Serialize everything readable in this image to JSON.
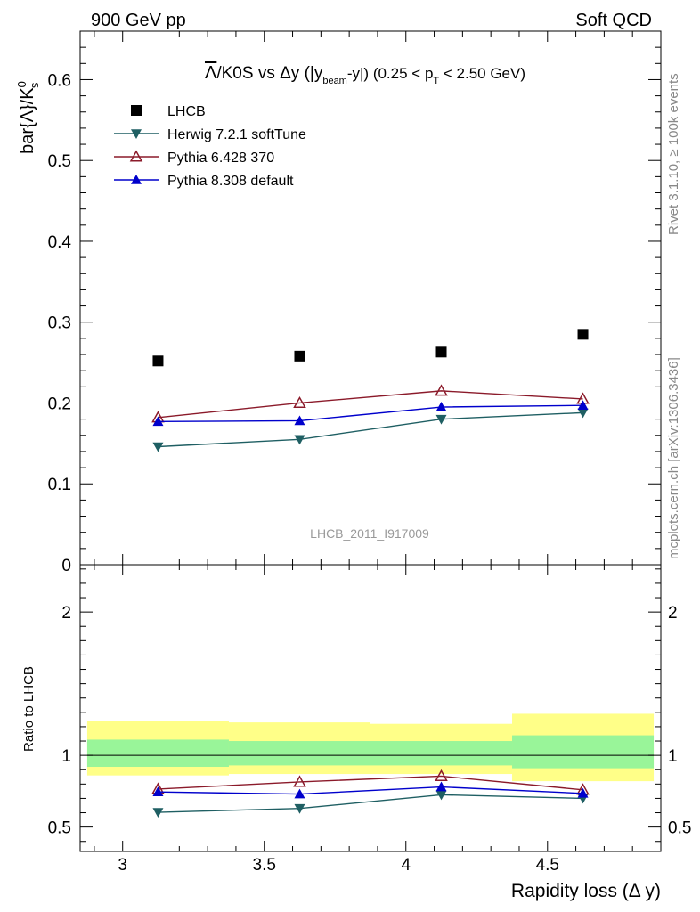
{
  "header": {
    "left": "900 GeV pp",
    "right": "Soft QCD"
  },
  "side_labels": {
    "rivet": "Rivet 3.1.10, ≥ 100k events",
    "mcplots": "mcplots.cern.ch [arXiv:1306.3436]"
  },
  "chart_data": [
    {
      "type": "scatter",
      "title_overline": "Λ",
      "title_main": "/K0S vs Δy (|y",
      "title_sub1": "beam",
      "title_mid": "-y|) (0.25 < p",
      "title_sub2": "T",
      "title_end": " < 2.50 GeV)",
      "ylabel_main": "bar{Λ}/K",
      "ylabel_sup": "0",
      "ylabel_sub": "s",
      "watermark": "LHCB_2011_I917009",
      "ylim": [
        0,
        0.66
      ],
      "yticks": [
        0,
        0.1,
        0.2,
        0.3,
        0.4,
        0.5,
        0.6
      ],
      "ytick_labels": [
        "0",
        "0.1",
        "0.2",
        "0.3",
        "0.4",
        "0.5",
        "0.6"
      ],
      "x": [
        3.125,
        3.625,
        4.125,
        4.625
      ],
      "data": {
        "name": "LHCB",
        "color": "#000000",
        "marker": "square",
        "values": [
          0.252,
          0.258,
          0.263,
          0.285
        ]
      },
      "series": [
        {
          "name": "Herwig 7.2.1 softTune",
          "color": "#1f5f63",
          "marker": "triangle-down",
          "values": [
            0.146,
            0.155,
            0.18,
            0.188
          ]
        },
        {
          "name": "Pythia 6.428 370",
          "color": "#8b1a2a",
          "marker": "triangle-up-open",
          "values": [
            0.182,
            0.2,
            0.215,
            0.205
          ]
        },
        {
          "name": "Pythia 8.308 default",
          "color": "#0000cc",
          "marker": "triangle-up",
          "values": [
            0.177,
            0.178,
            0.195,
            0.197
          ]
        }
      ],
      "legend_position": "top-left"
    },
    {
      "type": "line",
      "ylabel": "Ratio to LHCB",
      "xlabel": "Rapidity loss (Δ y)",
      "xlim": [
        2.85,
        4.9
      ],
      "xticks": [
        3,
        3.5,
        4,
        4.5
      ],
      "xtick_labels": [
        "3",
        "3.5",
        "4",
        "4.5"
      ],
      "ylim": [
        0.33,
        2.33
      ],
      "yticks": [
        0.5,
        1,
        2
      ],
      "ytick_labels": [
        "0.5",
        "1",
        "2"
      ],
      "bands": [
        {
          "x0": 2.875,
          "x1": 3.375,
          "yellow": [
            0.86,
            1.24
          ],
          "green": [
            0.92,
            1.11
          ]
        },
        {
          "x0": 3.375,
          "x1": 3.875,
          "yellow": [
            0.87,
            1.23
          ],
          "green": [
            0.93,
            1.1
          ]
        },
        {
          "x0": 3.875,
          "x1": 4.375,
          "yellow": [
            0.87,
            1.22
          ],
          "green": [
            0.93,
            1.1
          ]
        },
        {
          "x0": 4.375,
          "x1": 4.875,
          "yellow": [
            0.82,
            1.29
          ],
          "green": [
            0.91,
            1.14
          ]
        }
      ],
      "series": [
        {
          "name": "Herwig 7.2.1 softTune",
          "color": "#1f5f63",
          "marker": "triangle-down",
          "values": [
            0.603,
            0.63,
            0.725,
            0.7
          ]
        },
        {
          "name": "Pythia 6.428 370",
          "color": "#8b1a2a",
          "marker": "triangle-up-open",
          "values": [
            0.765,
            0.815,
            0.855,
            0.76
          ]
        },
        {
          "name": "Pythia 8.308 default",
          "color": "#0000cc",
          "marker": "triangle-up",
          "values": [
            0.745,
            0.73,
            0.78,
            0.735
          ]
        }
      ]
    }
  ]
}
